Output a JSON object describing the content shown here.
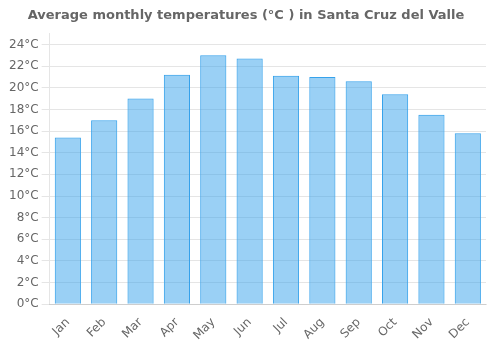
{
  "chart_data": {
    "type": "bar",
    "title": "Average monthly temperatures (°C ) in Santa Cruz del Valle",
    "categories": [
      "Jan",
      "Feb",
      "Mar",
      "Apr",
      "May",
      "Jun",
      "Jul",
      "Aug",
      "Sep",
      "Oct",
      "Nov",
      "Dec"
    ],
    "values": [
      15.4,
      17.0,
      19.0,
      21.2,
      23.0,
      22.7,
      21.1,
      21.0,
      20.6,
      19.4,
      17.5,
      15.8
    ],
    "ylim": [
      0,
      25
    ],
    "yticks": [
      {
        "value": 0,
        "label": "0°C"
      },
      {
        "value": 2,
        "label": "2°C"
      },
      {
        "value": 4,
        "label": "4°C"
      },
      {
        "value": 6,
        "label": "6°C"
      },
      {
        "value": 8,
        "label": "8°C"
      },
      {
        "value": 10,
        "label": "10°C"
      },
      {
        "value": 12,
        "label": "12°C"
      },
      {
        "value": 14,
        "label": "14°C"
      },
      {
        "value": 16,
        "label": "16°C"
      },
      {
        "value": 18,
        "label": "18°C"
      },
      {
        "value": 20,
        "label": "20°C"
      },
      {
        "value": 22,
        "label": "22°C"
      },
      {
        "value": 24,
        "label": "24°C"
      }
    ],
    "grid": true
  }
}
